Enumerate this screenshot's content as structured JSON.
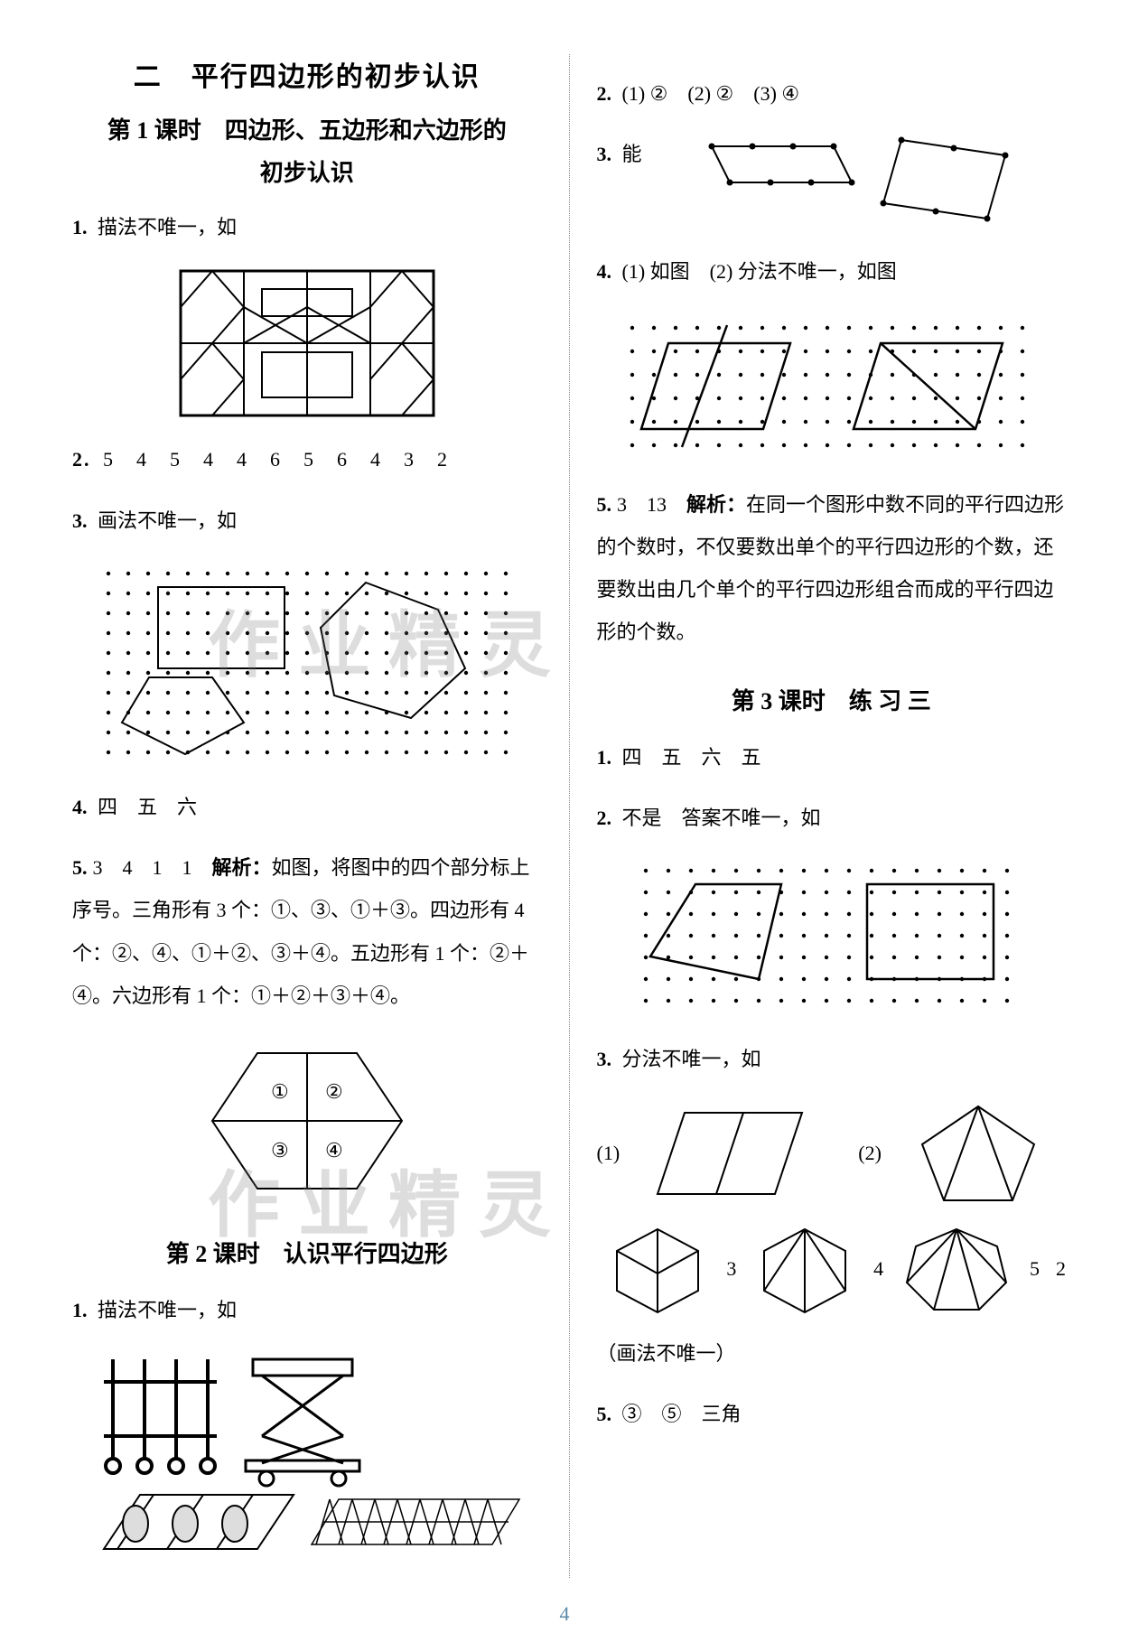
{
  "page_number": "4",
  "colors": {
    "text": "#000000",
    "stroke": "#000000",
    "dot": "#000000",
    "bg": "#ffffff",
    "pagenum": "#5a8aa8",
    "watermark": "rgba(120,120,120,0.25)"
  },
  "watermark_text": "作业精灵",
  "left": {
    "chapter_title": "二　平行四边形的初步认识",
    "lesson1_title_a": "第 1 课时　四边形、五边形和六边形的",
    "lesson1_title_b": "初步认识",
    "q1_label": "1.",
    "q1_text": "描法不唯一，如",
    "q2_label": "2.",
    "q2_text": "5　4　5　4　4　6　5　6　4　3　2",
    "q3_label": "3.",
    "q3_text": "画法不唯一，如",
    "q4_label": "4.",
    "q4_text": "四　五　六",
    "q5_label": "5.",
    "q5_a": "3　4　1　1　",
    "q5_analysis_label": "解析：",
    "q5_b": "如图，将图中的四个部分标上序号。三角形有 3 个：①、③、①＋③。四边形有 4 个：②、④、①＋②、③＋④。五边形有 1 个：②＋④。六边形有 1 个：①＋②＋③＋④。",
    "hex_labels": [
      "①",
      "②",
      "③",
      "④"
    ],
    "lesson2_title": "第 2 课时　认识平行四边形",
    "l2q1_label": "1.",
    "l2q1_text": "描法不唯一，如"
  },
  "right": {
    "q2_label": "2.",
    "q2_text": "(1) ②　(2) ②　(3) ④",
    "q3_label": "3.",
    "q3_text": "能",
    "q4_label": "4.",
    "q4_text": "(1) 如图　(2) 分法不唯一，如图",
    "q5_label": "5.",
    "q5_a": "3　13　",
    "q5_analysis_label": "解析：",
    "q5_b": "在同一个图形中数不同的平行四边形的个数时，不仅要数出单个的平行四边形的个数，还要数出由几个单个的平行四边形组合而成的平行四边形的个数。",
    "lesson3_title": "第 3 课时　练 习 三",
    "l3q1_label": "1.",
    "l3q1_text": "四　五　六　五",
    "l3q2_label": "2.",
    "l3q2_text": "不是　答案不唯一，如",
    "l3q3_label": "3.",
    "l3q3_text": "分法不唯一，如",
    "l3q3_p1": "(1)",
    "l3q3_p2": "(2)",
    "q4_nums": [
      "3",
      "4",
      "5",
      "2"
    ],
    "q4_paren": "（画法不唯一）",
    "l3q5_label": "5.",
    "l3q5_text": "③　⑤　三角"
  }
}
